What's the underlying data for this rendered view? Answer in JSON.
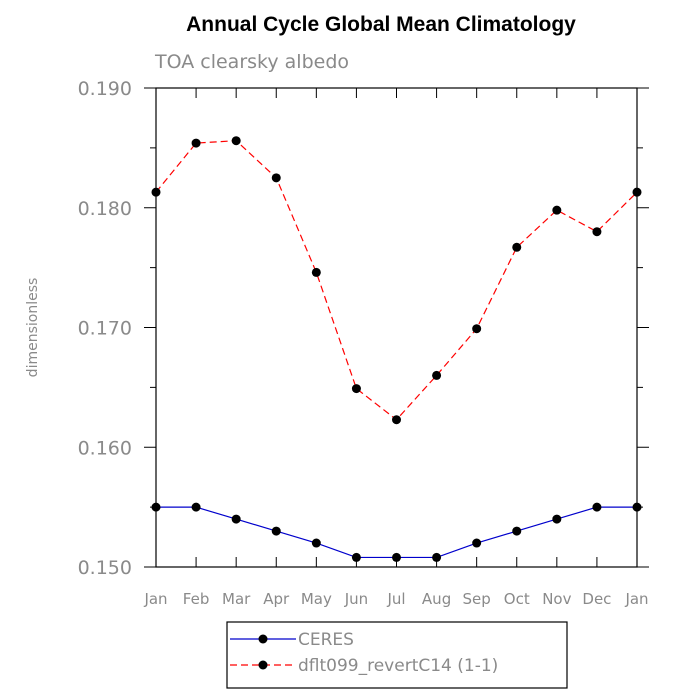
{
  "chart_data": {
    "type": "line",
    "title": "Annual Cycle Global Mean Climatology",
    "subtitle": "TOA clearsky albedo",
    "xlabel": "",
    "ylabel": "dimensionless",
    "categories": [
      "Jan",
      "Feb",
      "Mar",
      "Apr",
      "May",
      "Jun",
      "Jul",
      "Aug",
      "Sep",
      "Oct",
      "Nov",
      "Dec",
      "Jan"
    ],
    "ylim": [
      0.15,
      0.19
    ],
    "yticks": [
      0.15,
      0.16,
      0.17,
      0.18,
      0.19
    ],
    "ytick_labels": [
      "0.150",
      "0.160",
      "0.170",
      "0.180",
      "0.190"
    ],
    "grid": false,
    "legend_position": "bottom",
    "series": [
      {
        "name": "CERES",
        "color": "#0000cc",
        "line_style": "solid",
        "marker": "filled-circle",
        "values": [
          0.155,
          0.155,
          0.154,
          0.153,
          0.152,
          0.1508,
          0.1508,
          0.1508,
          0.152,
          0.153,
          0.154,
          0.155,
          0.155
        ]
      },
      {
        "name": "dflt099_revertC14 (1-1)",
        "color": "#ff0000",
        "line_style": "dashed",
        "marker": "filled-circle",
        "values": [
          0.1813,
          0.1854,
          0.1856,
          0.1825,
          0.1746,
          0.1649,
          0.1623,
          0.166,
          0.1699,
          0.1767,
          0.1798,
          0.178,
          0.1813
        ]
      }
    ]
  }
}
